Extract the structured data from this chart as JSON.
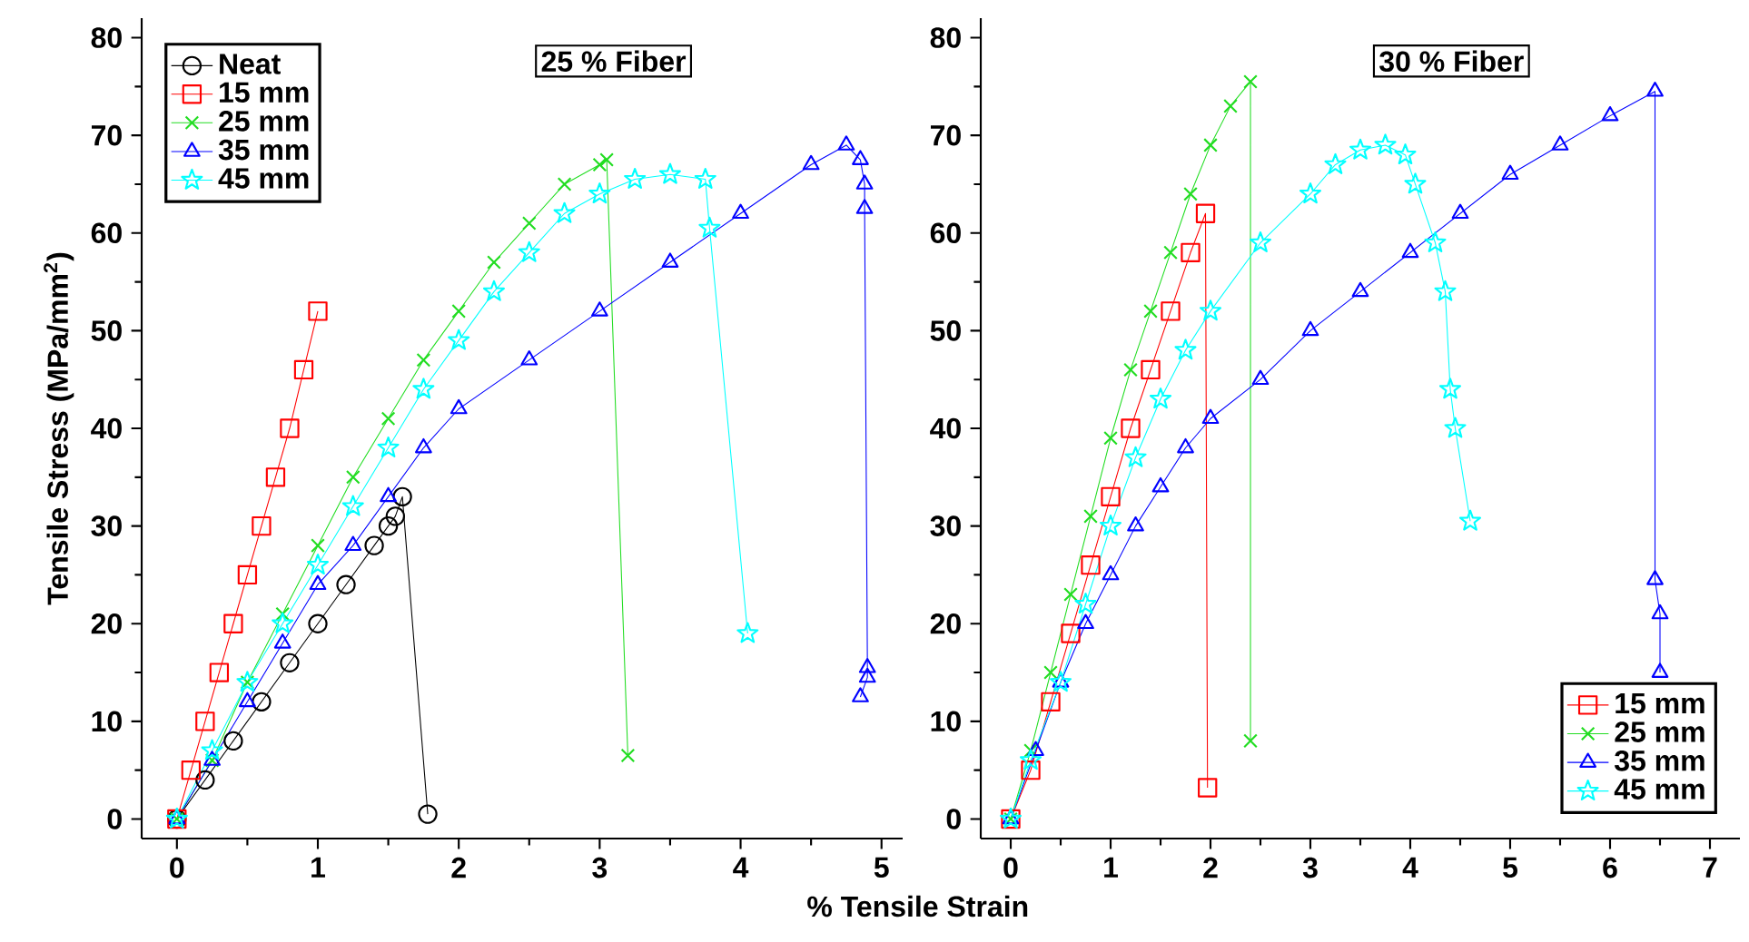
{
  "chart_data": [
    {
      "type": "line",
      "title": "25 % Fiber",
      "xlabel": "% Tensile Strain",
      "ylabel": "Tensile Stress (MPa/mm$^{2}$)",
      "xlim": [
        -0.25,
        5.15
      ],
      "ylim": [
        -2,
        82
      ],
      "xticks": [
        0,
        1,
        2,
        3,
        4,
        5
      ],
      "yticks": [
        0,
        10,
        20,
        30,
        40,
        50,
        60,
        70,
        80
      ],
      "legend": "top left",
      "series": [
        {
          "name": "Neat",
          "color": "#000000",
          "marker": "circle",
          "x": [
            0,
            0.2,
            0.4,
            0.6,
            0.8,
            1.0,
            1.2,
            1.4,
            1.5,
            1.55,
            1.6,
            1.78
          ],
          "values": [
            0,
            4,
            8,
            12,
            16,
            20,
            24,
            28,
            30,
            31,
            33,
            0.5
          ]
        },
        {
          "name": "15 mm",
          "color": "#ff0000",
          "marker": "square",
          "x": [
            0,
            0.1,
            0.2,
            0.3,
            0.4,
            0.5,
            0.6,
            0.7,
            0.8,
            0.9,
            1.0
          ],
          "values": [
            0,
            5,
            10,
            15,
            20,
            25,
            30,
            35,
            40,
            46,
            52
          ]
        },
        {
          "name": "25 mm",
          "color": "#22dd22",
          "marker": "cross",
          "x": [
            0,
            0.25,
            0.5,
            0.75,
            1.0,
            1.25,
            1.5,
            1.75,
            2.0,
            2.25,
            2.5,
            2.75,
            3.0,
            3.05,
            3.2
          ],
          "values": [
            0,
            6,
            14,
            21,
            28,
            35,
            41,
            47,
            52,
            57,
            61,
            65,
            67,
            67.5,
            6.5
          ]
        },
        {
          "name": "35 mm",
          "color": "#0000ff",
          "marker": "triangle",
          "x": [
            0,
            0.25,
            0.5,
            0.75,
            1.0,
            1.25,
            1.5,
            1.75,
            2.0,
            2.5,
            3.0,
            3.5,
            4.0,
            4.5,
            4.75,
            4.85,
            4.88,
            4.88,
            4.9,
            4.9,
            4.85
          ],
          "values": [
            0,
            6,
            12,
            18,
            24,
            28,
            33,
            38,
            42,
            47,
            52,
            57,
            62,
            67,
            69,
            67.5,
            65,
            62.5,
            15.5,
            14.5,
            12.5
          ]
        },
        {
          "name": "45 mm",
          "color": "#00ffff",
          "marker": "star",
          "x": [
            0,
            0.25,
            0.5,
            0.75,
            1.0,
            1.25,
            1.5,
            1.75,
            2.0,
            2.25,
            2.5,
            2.75,
            3.0,
            3.25,
            3.5,
            3.75,
            3.78,
            4.05
          ],
          "values": [
            0,
            7,
            14,
            20,
            26,
            32,
            38,
            44,
            49,
            54,
            58,
            62,
            64,
            65.5,
            66,
            65.5,
            60.5,
            19
          ]
        }
      ]
    },
    {
      "type": "line",
      "title": "30 % Fiber",
      "xlim": [
        -0.3,
        7.3
      ],
      "ylim": [
        -2,
        82
      ],
      "xticks": [
        0,
        1,
        2,
        3,
        4,
        5,
        6,
        7
      ],
      "yticks": [
        0,
        10,
        20,
        30,
        40,
        50,
        60,
        70,
        80
      ],
      "legend": "bottom right",
      "series": [
        {
          "name": "15 mm",
          "color": "#ff0000",
          "marker": "square",
          "x": [
            0,
            0.2,
            0.4,
            0.6,
            0.8,
            1.0,
            1.2,
            1.4,
            1.6,
            1.8,
            1.95,
            1.97
          ],
          "values": [
            0,
            5,
            12,
            19,
            26,
            33,
            40,
            46,
            52,
            58,
            62,
            3.2
          ]
        },
        {
          "name": "25 mm",
          "color": "#22dd22",
          "marker": "cross",
          "x": [
            0,
            0.2,
            0.4,
            0.6,
            0.8,
            1.0,
            1.2,
            1.4,
            1.6,
            1.8,
            2.0,
            2.2,
            2.4,
            2.4
          ],
          "values": [
            0,
            7,
            15,
            23,
            31,
            39,
            46,
            52,
            58,
            64,
            69,
            73,
            75.5,
            8
          ]
        },
        {
          "name": "35 mm",
          "color": "#0000ff",
          "marker": "triangle",
          "x": [
            0,
            0.25,
            0.5,
            0.75,
            1.0,
            1.25,
            1.5,
            1.75,
            2.0,
            2.5,
            3.0,
            3.5,
            4.0,
            4.5,
            5.0,
            5.5,
            6.0,
            6.45,
            6.45,
            6.5,
            6.5
          ],
          "values": [
            0,
            7,
            14,
            20,
            25,
            30,
            34,
            38,
            41,
            45,
            50,
            54,
            58,
            62,
            66,
            69,
            72,
            74.5,
            24.5,
            21,
            15
          ]
        },
        {
          "name": "45 mm",
          "color": "#00ffff",
          "marker": "star",
          "x": [
            0,
            0.2,
            0.5,
            0.75,
            1.0,
            1.25,
            1.5,
            1.75,
            2.0,
            2.5,
            3.0,
            3.25,
            3.5,
            3.75,
            3.95,
            4.05,
            4.25,
            4.35,
            4.4,
            4.45,
            4.6
          ],
          "values": [
            0,
            6,
            14,
            22,
            30,
            37,
            43,
            48,
            52,
            59,
            64,
            67,
            68.5,
            69,
            68,
            65,
            59,
            54,
            44,
            40,
            30.5
          ]
        }
      ]
    }
  ]
}
